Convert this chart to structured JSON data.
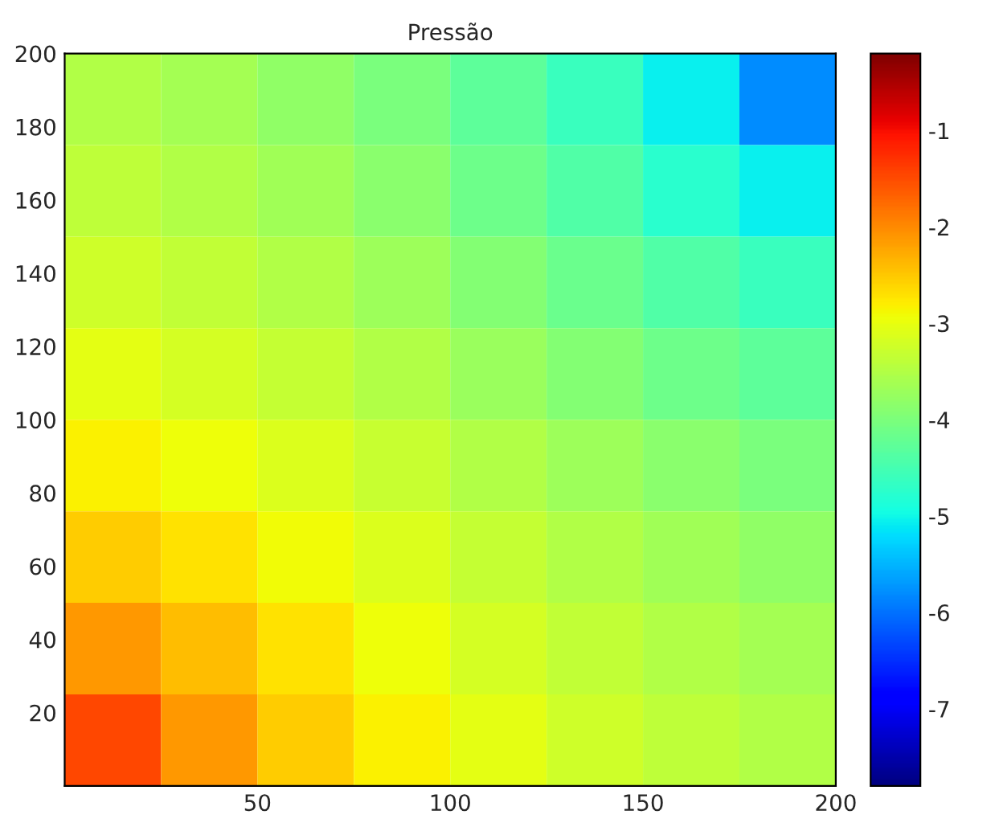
{
  "chart_data": {
    "type": "heatmap",
    "title": "Pressão",
    "x": [
      12.5,
      37.5,
      62.5,
      87.5,
      112.5,
      137.5,
      162.5,
      187.5
    ],
    "y": [
      187.5,
      162.5,
      137.5,
      112.5,
      87.5,
      62.5,
      37.5,
      12.5
    ],
    "cells": [
      [
        -3.5,
        -3.64,
        -3.81,
        -4.01,
        -4.27,
        -4.6,
        -5.06,
        -5.8
      ],
      [
        -3.38,
        -3.5,
        -3.67,
        -3.87,
        -4.12,
        -4.41,
        -4.75,
        -5.06
      ],
      [
        -3.23,
        -3.35,
        -3.5,
        -3.7,
        -3.93,
        -4.17,
        -4.41,
        -4.6
      ],
      [
        -3.05,
        -3.17,
        -3.32,
        -3.5,
        -3.71,
        -3.93,
        -4.12,
        -4.27
      ],
      [
        -2.82,
        -2.95,
        -3.12,
        -3.31,
        -3.5,
        -3.7,
        -3.87,
        -4.01
      ],
      [
        -2.53,
        -2.7,
        -2.91,
        -3.12,
        -3.32,
        -3.5,
        -3.67,
        -3.81
      ],
      [
        -2.12,
        -2.4,
        -2.7,
        -2.95,
        -3.17,
        -3.35,
        -3.5,
        -3.64
      ],
      [
        -1.47,
        -2.12,
        -2.53,
        -2.82,
        -3.05,
        -3.23,
        -3.38,
        -3.5
      ]
    ],
    "xlim": [
      0,
      200
    ],
    "ylim": [
      0,
      200
    ],
    "xticks": [
      50,
      100,
      150,
      200
    ],
    "yticks": [
      20,
      40,
      60,
      80,
      100,
      120,
      140,
      160,
      180,
      200
    ],
    "clim": [
      -7.8,
      -0.2
    ],
    "cticks": [
      -7,
      -6,
      -5,
      -4,
      -3,
      -2,
      -1
    ]
  }
}
